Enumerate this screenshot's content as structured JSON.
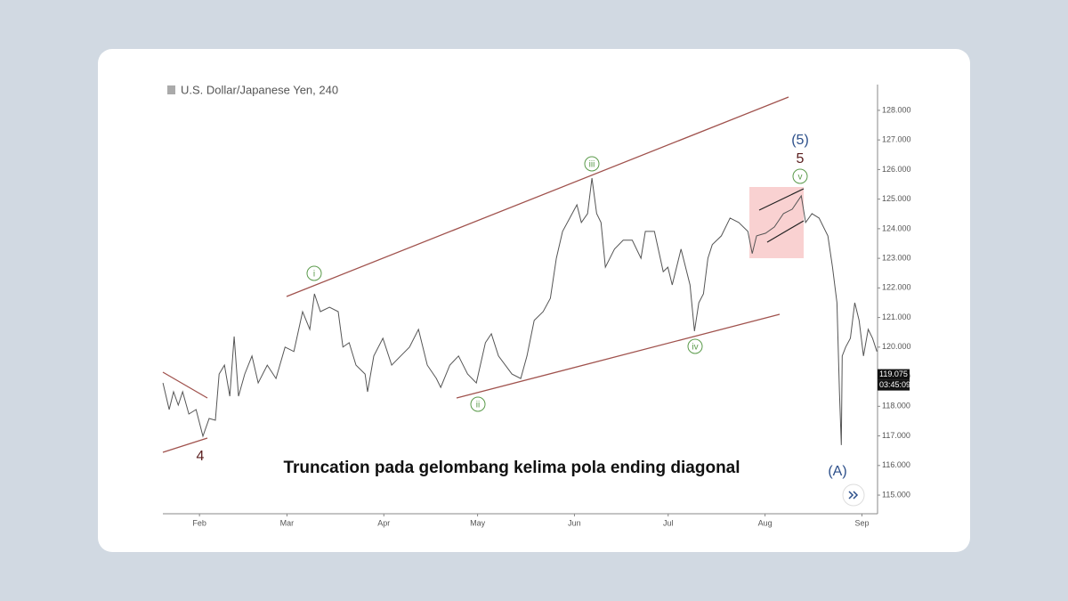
{
  "chart_data": {
    "type": "line",
    "title": "U.S. Dollar/Japanese Yen, 240",
    "caption": "Truncation pada gelombang kelima pola ending diagonal",
    "color": "#555555",
    "x": [
      20.3,
      22.3,
      23.7,
      25.2,
      26.6,
      28.6,
      30.9,
      33.1,
      35.1,
      37.1,
      38.3,
      40.0,
      41.7,
      43.1,
      44.5,
      46.5,
      48.8,
      50.8,
      53.7,
      56.5,
      59.4,
      62.2,
      65.0,
      67.3,
      68.8,
      70.7,
      73.6,
      76.4,
      77.9,
      79.9,
      82.1,
      85.0,
      85.8,
      87.8,
      90.7,
      93.5,
      96.4,
      99.2,
      102.1,
      104.9,
      107.8,
      109.2,
      112.1,
      114.9,
      117.8,
      120.6,
      123.5,
      125.4,
      127.7,
      132.0,
      134.8,
      136.8,
      139.1,
      142.0,
      144.3,
      146.2,
      148.2,
      150.5,
      152.8,
      154.2,
      156.2,
      157.6,
      159.1,
      160.5,
      161.9,
      164.8,
      167.6,
      170.5,
      173.3,
      174.7,
      177.6,
      180.4,
      181.9,
      183.3,
      186.1,
      189.0,
      190.4,
      191.8,
      193.3,
      194.7,
      196.1,
      199.0,
      201.8,
      204.6,
      207.5,
      208.9,
      210.3,
      213.2,
      216.0,
      218.9,
      221.7,
      224.6,
      226.0,
      228.0,
      230.3,
      233.1,
      234.6,
      236.0,
      236.8,
      237.4,
      237.7,
      238.8,
      240.3,
      241.7,
      243.1,
      244.5,
      246.0,
      247.4,
      248.8
    ],
    "values": [
      118.79,
      117.89,
      118.49,
      118.04,
      118.49,
      117.74,
      117.89,
      116.99,
      117.59,
      117.53,
      119.09,
      119.39,
      118.34,
      120.36,
      118.34,
      119.09,
      119.7,
      118.79,
      119.39,
      118.94,
      120.0,
      119.85,
      121.2,
      120.6,
      121.8,
      121.2,
      121.35,
      121.2,
      120.0,
      120.15,
      119.39,
      119.09,
      118.49,
      119.7,
      120.3,
      119.39,
      119.7,
      120.0,
      120.6,
      119.39,
      118.94,
      118.64,
      119.39,
      119.7,
      119.09,
      118.79,
      120.15,
      120.45,
      119.7,
      119.09,
      118.94,
      119.7,
      120.9,
      121.2,
      121.65,
      123.0,
      123.91,
      124.36,
      124.81,
      124.21,
      124.51,
      125.71,
      124.51,
      124.21,
      122.7,
      123.31,
      123.61,
      123.61,
      123.0,
      123.91,
      123.91,
      122.55,
      122.7,
      122.1,
      123.31,
      122.1,
      120.54,
      121.5,
      121.8,
      123.0,
      123.46,
      123.76,
      124.36,
      124.21,
      123.91,
      123.16,
      123.76,
      123.85,
      124.06,
      124.51,
      124.66,
      125.11,
      124.21,
      124.51,
      124.36,
      123.76,
      122.7,
      121.5,
      118.49,
      116.69,
      119.7,
      120.0,
      120.3,
      121.5,
      120.9,
      119.7,
      120.6,
      120.3,
      119.85
    ],
    "xlim": [
      20,
      249
    ],
    "ylim": [
      114.4,
      128.9
    ],
    "xticks": [
      {
        "value": 32,
        "label": "Feb"
      },
      {
        "value": 60,
        "label": "Mar"
      },
      {
        "value": 91,
        "label": "Apr"
      },
      {
        "value": 121,
        "label": "May"
      },
      {
        "value": 152,
        "label": "Jun"
      },
      {
        "value": 182,
        "label": "Jul"
      },
      {
        "value": 213,
        "label": "Aug"
      },
      {
        "value": 244,
        "label": "Sep"
      }
    ],
    "yticks": [
      {
        "value": 115,
        "label": "115.000"
      },
      {
        "value": 116,
        "label": "116.000"
      },
      {
        "value": 117,
        "label": "117.000"
      },
      {
        "value": 118,
        "label": "118.000"
      },
      {
        "value": 119,
        "label": "119.000"
      },
      {
        "value": 120,
        "label": "120.000"
      },
      {
        "value": 121,
        "label": "121.000"
      },
      {
        "value": 122,
        "label": "122.000"
      },
      {
        "value": 123,
        "label": "123.000"
      },
      {
        "value": 124,
        "label": "124.000"
      },
      {
        "value": 125,
        "label": "125.000"
      },
      {
        "value": 126,
        "label": "126.000"
      },
      {
        "value": 127,
        "label": "127.000"
      },
      {
        "value": 128,
        "label": "128.000"
      }
    ],
    "last_price": 119.075,
    "countdown": "03:45:09",
    "wave_labels": [
      "i",
      "ii",
      "iii",
      "iv",
      "v"
    ],
    "labels": [
      "4",
      "(5)",
      "5",
      "(A)"
    ]
  }
}
